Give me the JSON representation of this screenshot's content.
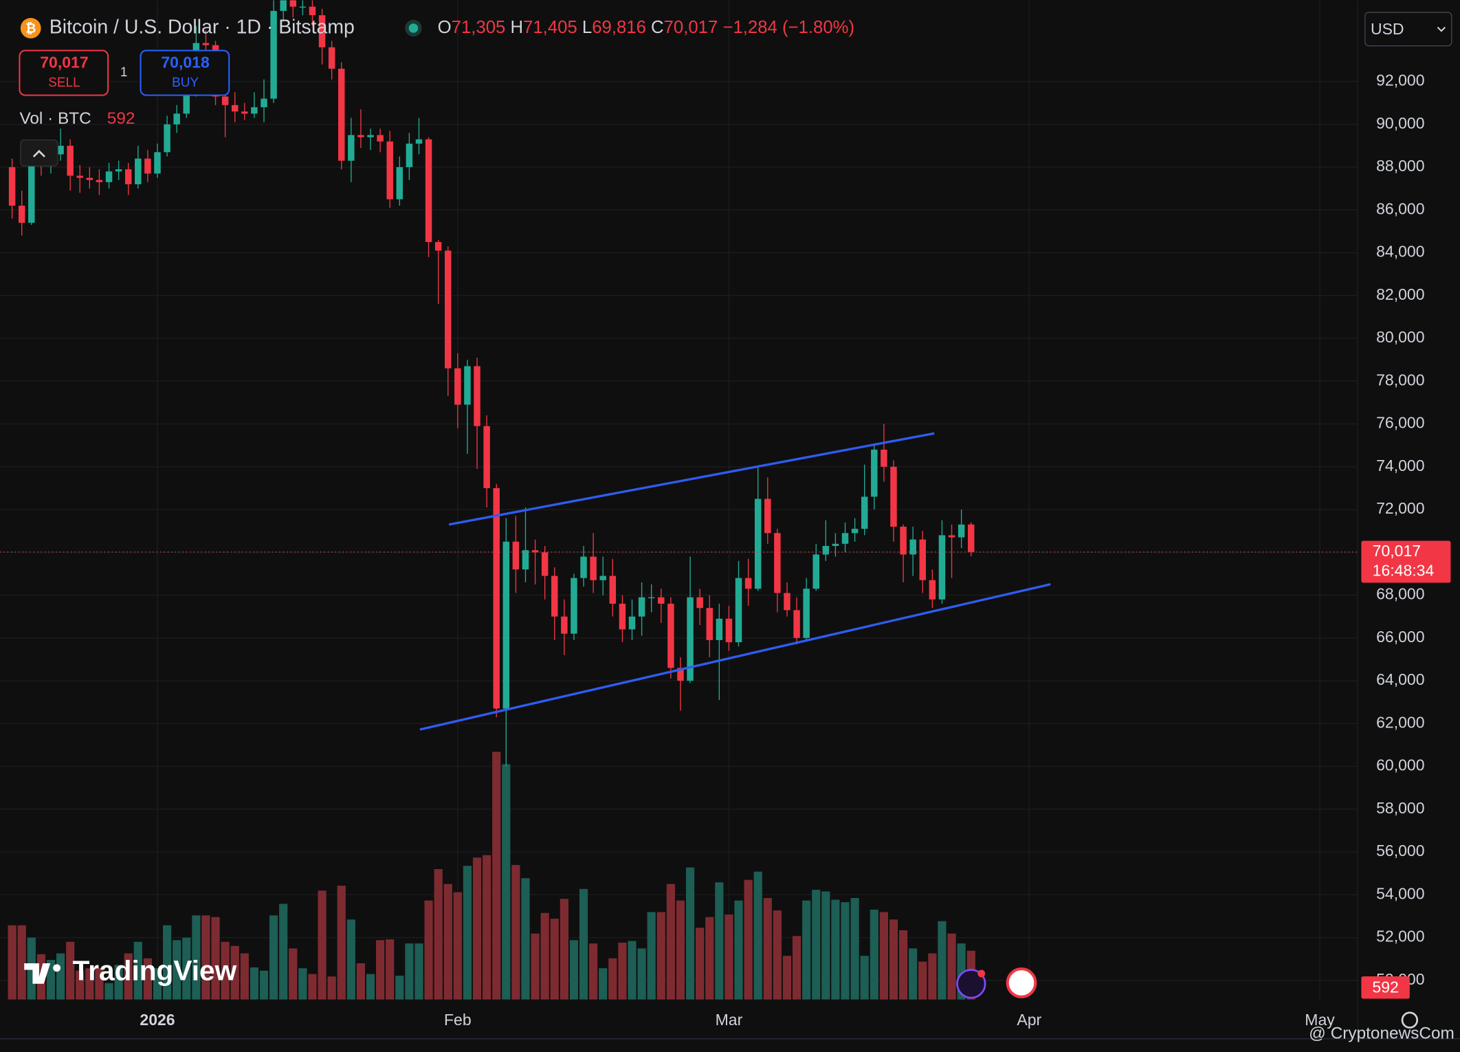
{
  "header": {
    "symbol": "Bitcoin / U.S. Dollar · 1D · Bitstamp",
    "ohlc": [
      {
        "key": "O",
        "value": "71,305"
      },
      {
        "key": "H",
        "value": "71,405"
      },
      {
        "key": "L",
        "value": "69,816"
      },
      {
        "key": "C",
        "value": "70,017"
      }
    ],
    "change": "−1,284 (−1.80%)",
    "sell": {
      "price": "70,017",
      "label": "SELL"
    },
    "quantity": "1",
    "buy": {
      "price": "70,018",
      "label": "BUY"
    },
    "volume_legend": "Vol · BTC",
    "currency": "USD"
  },
  "logo": "TradingView",
  "watermark": "@ CryptonewsCom",
  "chart_data": {
    "type": "candlestick",
    "open": [
      88000,
      86200,
      85400,
      88200,
      88100,
      88600,
      89000,
      87600,
      87500,
      87400,
      87300,
      87800,
      87900,
      87200,
      88400,
      87700,
      88700,
      90000,
      90500,
      91500,
      93800,
      93700,
      91300,
      90900,
      90600,
      90500,
      90800,
      91200,
      95300,
      97000,
      95500,
      95500,
      95100,
      93600,
      92600,
      88300,
      89500,
      89400,
      89500,
      89200,
      86500,
      88000,
      89100,
      89300,
      84500,
      84100,
      78600,
      76900,
      78700,
      75900,
      73000,
      62700,
      70500,
      69200,
      70100,
      70000,
      68900,
      67000,
      66200,
      68800,
      69800,
      68700,
      68900,
      67600,
      66400,
      67000,
      67900,
      67900,
      67600,
      64600,
      64000,
      67900,
      67400,
      65900,
      66900,
      65800,
      68800,
      68300,
      72500,
      70900,
      68100,
      67300,
      66000,
      68300,
      69900,
      70300,
      70400,
      70900,
      71100,
      72600,
      74800,
      74000,
      71200,
      69900,
      70600,
      68700,
      67800,
      70800,
      70700,
      71305
    ],
    "high": [
      88400,
      86900,
      88900,
      88700,
      89200,
      89800,
      89300,
      88100,
      88000,
      87900,
      88200,
      88300,
      88200,
      89000,
      88800,
      89100,
      90400,
      90900,
      92000,
      94600,
      94400,
      93900,
      91800,
      91500,
      91000,
      91500,
      92100,
      96500,
      97800,
      97400,
      95900,
      95800,
      95400,
      93900,
      92900,
      90300,
      90700,
      89800,
      89800,
      89700,
      88500,
      89600,
      90300,
      89400,
      84600,
      84300,
      79300,
      79000,
      79100,
      76400,
      73200,
      71600,
      71700,
      72100,
      70600,
      70300,
      69300,
      67800,
      69000,
      70300,
      70900,
      69800,
      69700,
      68000,
      67800,
      68600,
      68500,
      68300,
      67900,
      65100,
      69800,
      68300,
      68000,
      67600,
      67500,
      69600,
      69700,
      74000,
      73500,
      71100,
      68600,
      67900,
      68800,
      70400,
      71500,
      70900,
      71400,
      71600,
      74100,
      75000,
      76000,
      74300,
      71300,
      71200,
      71000,
      69200,
      71500,
      71300,
      72000,
      71405
    ],
    "low": [
      85600,
      84800,
      85300,
      87600,
      87700,
      88300,
      86900,
      86800,
      87000,
      86700,
      87000,
      87400,
      86700,
      87000,
      87300,
      87500,
      88500,
      89600,
      90300,
      91300,
      92600,
      90900,
      89400,
      90100,
      90200,
      90300,
      90100,
      91000,
      94800,
      95000,
      95100,
      94600,
      92800,
      92100,
      87900,
      87300,
      88900,
      88800,
      88700,
      86100,
      86200,
      87400,
      88600,
      83800,
      81600,
      77300,
      75800,
      74600,
      73900,
      72100,
      62300,
      60000,
      68100,
      68600,
      68500,
      67800,
      65900,
      65200,
      65900,
      68400,
      68100,
      68000,
      67000,
      65800,
      65900,
      66100,
      67200,
      66700,
      64100,
      62600,
      63900,
      66600,
      65100,
      63100,
      65400,
      65600,
      67500,
      68200,
      70400,
      67200,
      67000,
      65700,
      65900,
      68200,
      69600,
      69800,
      70000,
      70500,
      70800,
      72000,
      73300,
      70500,
      68600,
      68900,
      68100,
      67400,
      67600,
      68800,
      70200,
      69816
    ],
    "close": [
      86200,
      85400,
      88200,
      88100,
      88600,
      89000,
      87600,
      87500,
      87400,
      87300,
      87800,
      87900,
      87200,
      88400,
      87700,
      88700,
      90000,
      90500,
      91500,
      93800,
      93700,
      91300,
      90900,
      90600,
      90500,
      90800,
      91200,
      95300,
      97000,
      95500,
      95500,
      95100,
      93600,
      92600,
      88300,
      89500,
      89400,
      89500,
      89200,
      86500,
      88000,
      89100,
      89300,
      84500,
      84100,
      78600,
      76900,
      78700,
      75900,
      73000,
      62700,
      70500,
      69200,
      70100,
      70000,
      68900,
      67000,
      66200,
      68800,
      69800,
      68700,
      68900,
      67600,
      66400,
      67000,
      67900,
      67900,
      67600,
      64600,
      64000,
      67900,
      67400,
      65900,
      66900,
      65800,
      68800,
      68300,
      72500,
      70900,
      68100,
      67300,
      66000,
      68300,
      69900,
      70300,
      70400,
      70900,
      71100,
      72600,
      74800,
      74000,
      71200,
      69900,
      70600,
      68700,
      67800,
      70800,
      70700,
      71300,
      70017
    ],
    "volume": [
      900,
      900,
      750,
      550,
      480,
      560,
      700,
      350,
      380,
      380,
      200,
      420,
      560,
      700,
      500,
      380,
      900,
      720,
      750,
      1020,
      1020,
      1000,
      700,
      650,
      560,
      390,
      350,
      1020,
      1160,
      620,
      380,
      310,
      1320,
      280,
      1380,
      970,
      440,
      310,
      720,
      730,
      290,
      680,
      680,
      1200,
      1580,
      1400,
      1300,
      1620,
      1720,
      1750,
      3000,
      2850,
      1630,
      1470,
      800,
      1050,
      980,
      1220,
      720,
      1340,
      680,
      380,
      500,
      690,
      710,
      620,
      1060,
      1060,
      1400,
      1200,
      1600,
      870,
      1000,
      1420,
      1030,
      1200,
      1450,
      1550,
      1230,
      1080,
      530,
      770,
      1200,
      1330,
      1310,
      1210,
      1180,
      1230,
      530,
      1090,
      1060,
      970,
      840,
      620,
      460,
      560,
      950,
      800,
      680,
      592
    ],
    "colors": {
      "up": "#22ab94",
      "down": "#f23645",
      "volume_up": "#1d5e55",
      "volume_down": "#7d2b31",
      "trendline": "#2f5cf0"
    },
    "xlim": [
      -1.25,
      138.9
    ],
    "xticks": [
      {
        "value": 15,
        "label": "2026"
      },
      {
        "value": 46,
        "label": "Feb"
      },
      {
        "value": 74,
        "label": "Mar"
      },
      {
        "value": 105,
        "label": "Apr"
      },
      {
        "value": 135,
        "label": "May"
      }
    ],
    "ylim": [
      49100,
      95800
    ],
    "yticks": [
      {
        "value": 50000,
        "label": "50,000"
      },
      {
        "value": 52000,
        "label": "52,000"
      },
      {
        "value": 54000,
        "label": "54,000"
      },
      {
        "value": 56000,
        "label": "56,000"
      },
      {
        "value": 58000,
        "label": "58,000"
      },
      {
        "value": 60000,
        "label": "60,000"
      },
      {
        "value": 62000,
        "label": "62,000"
      },
      {
        "value": 64000,
        "label": "64,000"
      },
      {
        "value": 66000,
        "label": "66,000"
      },
      {
        "value": 68000,
        "label": "68,000"
      },
      {
        "value": 70000,
        "label": "70,000"
      },
      {
        "value": 72000,
        "label": "72,000"
      },
      {
        "value": 74000,
        "label": "74,000"
      },
      {
        "value": 76000,
        "label": "76,000"
      },
      {
        "value": 78000,
        "label": "78,000"
      },
      {
        "value": 80000,
        "label": "80,000"
      },
      {
        "value": 82000,
        "label": "82,000"
      },
      {
        "value": 84000,
        "label": "84,000"
      },
      {
        "value": 86000,
        "label": "86,000"
      },
      {
        "value": 88000,
        "label": "88,000"
      },
      {
        "value": 90000,
        "label": "90,000"
      },
      {
        "value": 92000,
        "label": "92,000"
      }
    ],
    "grid": true,
    "last_price": {
      "value": 70017,
      "label": "70,017"
    },
    "countdown": "16:48:34",
    "trendlines": [
      {
        "from": {
          "x": 45.1,
          "y": 71300
        },
        "to": {
          "x": 95.2,
          "y": 75560
        }
      },
      {
        "from": {
          "x": 42.1,
          "y": 61720
        },
        "to": {
          "x": 107.2,
          "y": 68510
        }
      }
    ]
  }
}
